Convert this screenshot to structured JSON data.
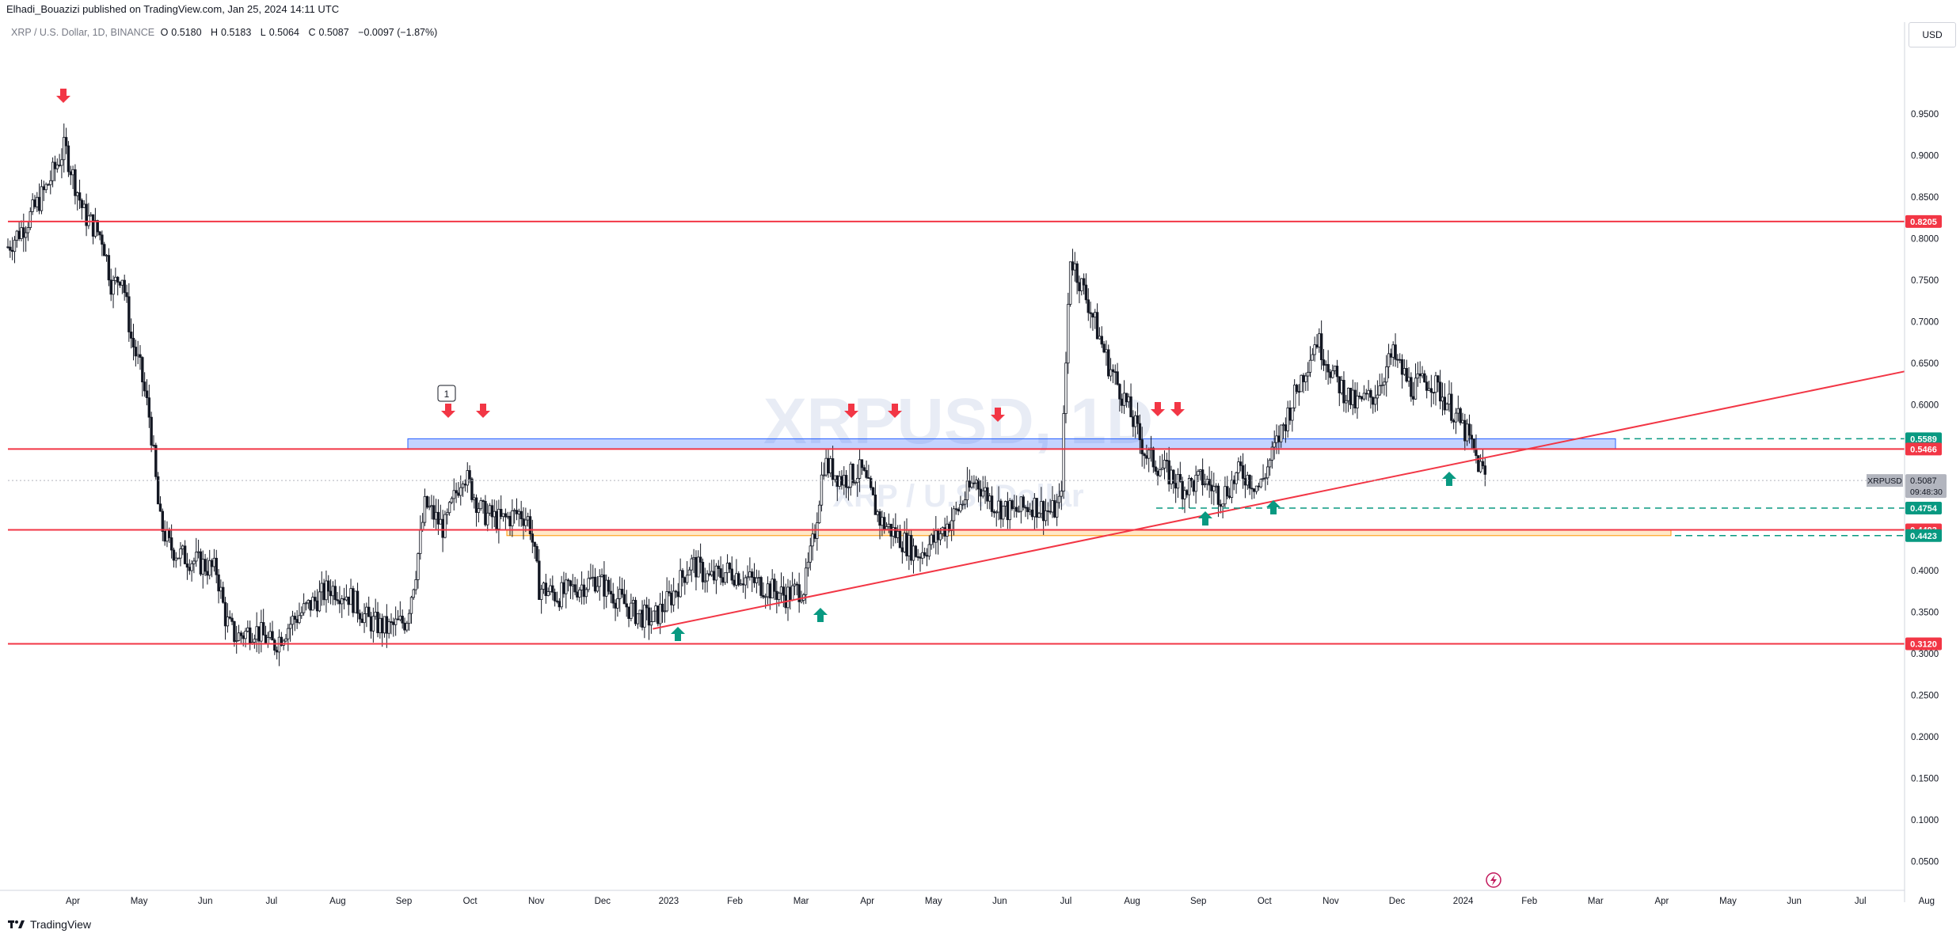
{
  "header": {
    "credit": "Elhadi_Bouazizi published on TradingView.com, Jan 25, 2024 14:11 UTC"
  },
  "legend": {
    "symbol": "XRP / U.S. Dollar, 1D, BINANCE",
    "o_label": "O",
    "o_value": "0.5180",
    "h_label": "H",
    "h_value": "0.5183",
    "l_label": "L",
    "l_value": "0.5064",
    "c_label": "C",
    "c_value": "0.5087",
    "change": "−0.0097 (−1.87%)"
  },
  "currency_button": "USD",
  "watermark": {
    "line1": "XRPUSD, 1D",
    "line2": "XRP / U.S. Dollar"
  },
  "footer": {
    "brand": "TradingView"
  },
  "colors": {
    "level_line": "#f23645",
    "trend_line": "#f23645",
    "down_arrow": "#f23645",
    "up_arrow": "#089981",
    "zone_blue": "#2962ff",
    "zone_orange": "#ff9800",
    "dashed_green": "#089981",
    "current_tag": "#b2b5be"
  },
  "chart_data": {
    "type": "candlestick",
    "title": "XRP / U.S. Dollar, 1D, BINANCE",
    "x_ticks": [
      "Apr",
      "May",
      "Jun",
      "Jul",
      "Aug",
      "Sep",
      "Oct",
      "Nov",
      "Dec",
      "2023",
      "Feb",
      "Mar",
      "Apr",
      "May",
      "Jun",
      "Jul",
      "Aug",
      "Sep",
      "Oct",
      "Nov",
      "Dec",
      "2024",
      "Feb",
      "Mar",
      "Apr",
      "May",
      "Jun",
      "Jul",
      "Aug"
    ],
    "y_ticks": [
      "0.9500",
      "0.9000",
      "0.8500",
      "0.8000",
      "0.7500",
      "0.7000",
      "0.6500",
      "0.6000",
      "0.5500",
      "0.5000",
      "0.4500",
      "0.4000",
      "0.3500",
      "0.3000",
      "0.2500",
      "0.2000",
      "0.1500",
      "0.1000",
      "0.0500"
    ],
    "y_range": [
      0.02,
      1.03
    ],
    "price_path": [
      [
        0,
        0.79
      ],
      [
        0.01,
        0.82
      ],
      [
        0.02,
        0.86
      ],
      [
        0.03,
        0.91
      ],
      [
        0.04,
        0.83
      ],
      [
        0.05,
        0.8
      ],
      [
        0.055,
        0.74
      ],
      [
        0.06,
        0.76
      ],
      [
        0.065,
        0.68
      ],
      [
        0.07,
        0.64
      ],
      [
        0.075,
        0.58
      ],
      [
        0.08,
        0.46
      ],
      [
        0.085,
        0.43
      ],
      [
        0.09,
        0.42
      ],
      [
        0.1,
        0.41
      ],
      [
        0.11,
        0.4
      ],
      [
        0.115,
        0.34
      ],
      [
        0.12,
        0.32
      ],
      [
        0.13,
        0.33
      ],
      [
        0.14,
        0.31
      ],
      [
        0.15,
        0.34
      ],
      [
        0.16,
        0.36
      ],
      [
        0.17,
        0.38
      ],
      [
        0.18,
        0.37
      ],
      [
        0.19,
        0.34
      ],
      [
        0.2,
        0.33
      ],
      [
        0.21,
        0.34
      ],
      [
        0.215,
        0.4
      ],
      [
        0.22,
        0.48
      ],
      [
        0.23,
        0.45
      ],
      [
        0.24,
        0.52
      ],
      [
        0.25,
        0.47
      ],
      [
        0.26,
        0.46
      ],
      [
        0.27,
        0.47
      ],
      [
        0.275,
        0.46
      ],
      [
        0.28,
        0.38
      ],
      [
        0.29,
        0.37
      ],
      [
        0.3,
        0.38
      ],
      [
        0.31,
        0.39
      ],
      [
        0.32,
        0.37
      ],
      [
        0.33,
        0.35
      ],
      [
        0.34,
        0.34
      ],
      [
        0.35,
        0.37
      ],
      [
        0.36,
        0.41
      ],
      [
        0.37,
        0.39
      ],
      [
        0.38,
        0.4
      ],
      [
        0.39,
        0.39
      ],
      [
        0.4,
        0.38
      ],
      [
        0.41,
        0.37
      ],
      [
        0.42,
        0.38
      ],
      [
        0.425,
        0.44
      ],
      [
        0.43,
        0.53
      ],
      [
        0.44,
        0.51
      ],
      [
        0.45,
        0.52
      ],
      [
        0.46,
        0.46
      ],
      [
        0.47,
        0.44
      ],
      [
        0.48,
        0.42
      ],
      [
        0.49,
        0.44
      ],
      [
        0.5,
        0.47
      ],
      [
        0.51,
        0.51
      ],
      [
        0.52,
        0.48
      ],
      [
        0.53,
        0.47
      ],
      [
        0.54,
        0.48
      ],
      [
        0.55,
        0.47
      ],
      [
        0.555,
        0.48
      ],
      [
        0.56,
        0.78
      ],
      [
        0.565,
        0.75
      ],
      [
        0.57,
        0.72
      ],
      [
        0.58,
        0.65
      ],
      [
        0.59,
        0.6
      ],
      [
        0.6,
        0.54
      ],
      [
        0.61,
        0.52
      ],
      [
        0.62,
        0.5
      ],
      [
        0.63,
        0.51
      ],
      [
        0.64,
        0.49
      ],
      [
        0.65,
        0.52
      ],
      [
        0.66,
        0.5
      ],
      [
        0.67,
        0.56
      ],
      [
        0.68,
        0.62
      ],
      [
        0.69,
        0.68
      ],
      [
        0.7,
        0.63
      ],
      [
        0.71,
        0.6
      ],
      [
        0.72,
        0.61
      ],
      [
        0.73,
        0.66
      ],
      [
        0.74,
        0.62
      ],
      [
        0.75,
        0.63
      ],
      [
        0.76,
        0.6
      ],
      [
        0.77,
        0.56
      ],
      [
        0.775,
        0.53
      ],
      [
        0.78,
        0.51
      ]
    ],
    "levels": [
      0.8205,
      0.5466,
      0.4493,
      0.312
    ],
    "price_tags": [
      {
        "value": "0.8205",
        "color": "#f23645"
      },
      {
        "value": "0.5589",
        "color": "#089981"
      },
      {
        "value": "0.5466",
        "color": "#f23645"
      },
      {
        "value": "0.4754",
        "color": "#089981"
      },
      {
        "value": "0.4493",
        "color": "#f23645"
      },
      {
        "value": "0.4423",
        "color": "#089981"
      },
      {
        "value": "0.3120",
        "color": "#f23645"
      }
    ],
    "current_price": {
      "symbol": "XRPUSD",
      "value": "0.5087",
      "countdown": "09:48:30"
    },
    "zones": [
      {
        "name": "blue-zone",
        "from": 0.5466,
        "to": 0.5589
      },
      {
        "name": "orange-zone",
        "from": 0.4423,
        "to": 0.4493
      }
    ],
    "trend_line": {
      "from": [
        0.34,
        0.33
      ],
      "to": [
        1.0,
        0.64
      ]
    },
    "annotation_label": "1"
  }
}
